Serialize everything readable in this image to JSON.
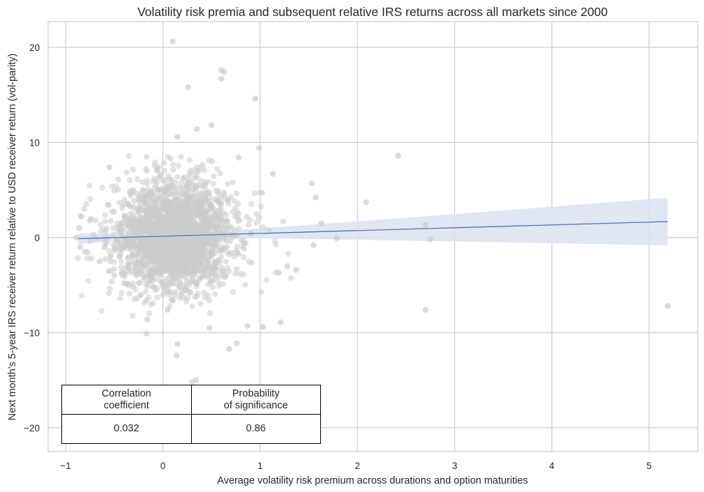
{
  "chart_data": {
    "type": "scatter",
    "title": "Volatility risk premia and subsequent relative IRS returns across all markets since 2000",
    "xlabel": "Average volatility risk premium across durations and option maturities",
    "ylabel": "Next month's 5-year IRS receiver return relative to USD receiver return (vol-parity)",
    "xlim": [
      -1.18,
      5.5
    ],
    "ylim": [
      -22.5,
      22.7
    ],
    "xticks": [
      -1,
      0,
      1,
      2,
      3,
      4,
      5
    ],
    "xtick_labels": [
      "−1",
      "0",
      "1",
      "2",
      "3",
      "4",
      "5"
    ],
    "yticks": [
      -20,
      -10,
      0,
      10,
      20
    ],
    "ytick_labels": [
      "−20",
      "−10",
      "0",
      "10",
      "20"
    ],
    "grid": true,
    "point_color": "#cccccc",
    "line_color": "#4c72b0",
    "band_color": "#dbe3f0",
    "regression": {
      "x_range": [
        -0.87,
        5.19
      ],
      "y_at_start": -0.12,
      "y_at_end": 1.68,
      "ci_upper_at_end": 4.2,
      "ci_lower_at_end": -0.8
    },
    "cloud": {
      "count": 2200,
      "x_mean": 0.12,
      "x_sd": 0.28,
      "y_mean": 0.2,
      "y_sd": 3.0
    },
    "points": [
      [
        0.1,
        20.6
      ],
      [
        0.6,
        17.6
      ],
      [
        0.63,
        17.4
      ],
      [
        0.6,
        16.7
      ],
      [
        0.26,
        15.8
      ],
      [
        0.95,
        14.6
      ],
      [
        0.35,
        11.4
      ],
      [
        0.5,
        11.8
      ],
      [
        0.15,
        10.6
      ],
      [
        0.99,
        9.4
      ],
      [
        0.78,
        8.4
      ],
      [
        2.42,
        8.6
      ],
      [
        -0.55,
        7.4
      ],
      [
        2.09,
        3.7
      ],
      [
        1.57,
        4.2
      ],
      [
        1.53,
        5.7
      ],
      [
        1.63,
        1.5
      ],
      [
        1.79,
        -0.1
      ],
      [
        1.55,
        -0.8
      ],
      [
        1.37,
        -3.4
      ],
      [
        2.7,
        1.3
      ],
      [
        2.75,
        -0.2
      ],
      [
        2.7,
        -7.6
      ],
      [
        5.19,
        -7.2
      ],
      [
        -0.86,
        1.0
      ],
      [
        -0.89,
        0.0
      ],
      [
        -0.85,
        -1.0
      ],
      [
        -0.8,
        -1.5
      ],
      [
        -0.75,
        1.8
      ],
      [
        -0.6,
        -1.0
      ],
      [
        -0.65,
        -2.5
      ],
      [
        -0.5,
        -4.0
      ],
      [
        -0.4,
        -4.8
      ],
      [
        -0.17,
        -10.1
      ],
      [
        -0.16,
        -8.6
      ],
      [
        0.15,
        -11.2
      ],
      [
        0.14,
        -12.4
      ],
      [
        0.68,
        -11.7
      ],
      [
        0.76,
        -11.1
      ],
      [
        0.3,
        -15.2
      ],
      [
        0.34,
        -15.0
      ],
      [
        0.48,
        -9.5
      ],
      [
        1.03,
        -9.4
      ],
      [
        1.21,
        -8.9
      ],
      [
        0.87,
        -9.3
      ],
      [
        0.05,
        -7.6
      ],
      [
        1.19,
        -3.7
      ],
      [
        1.28,
        -3.0
      ],
      [
        1.13,
        6.7
      ],
      [
        1.02,
        4.7
      ]
    ],
    "stats_table": {
      "headers": [
        "Correlation\ncoefficient",
        "Probability\nof significance"
      ],
      "values": [
        "0.032",
        "0.86"
      ]
    }
  }
}
